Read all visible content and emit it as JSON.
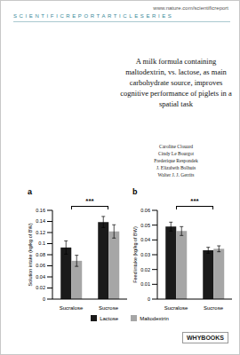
{
  "document": {
    "url": "www.nature.com/scientificreport",
    "series": "SCIENTIFICREPORTARTICLESERIES",
    "title": "A milk formula containing maltodextrin, vs. lactose, as main carbohydrate source, improves cognitive performance of piglets in a spatial task",
    "authors": [
      "Caroline Clouard",
      "Cindy Le Bourgot",
      "Frederique Respondek",
      "J. Elizabeth Bolhuis",
      "Walter J. J. Gerrits"
    ],
    "publisher": "WHYBOOKS"
  },
  "chart_data": [
    {
      "panel": "a",
      "type": "bar",
      "y_label": "Solution intake (kg/kg of BW)",
      "categories": [
        "Sucralose",
        "Sucrose"
      ],
      "series": [
        {
          "name": "Lactose",
          "color": "#1a1a1a",
          "values": [
            0.093,
            0.139
          ],
          "errors": [
            0.012,
            0.01
          ]
        },
        {
          "name": "Maltodextrin",
          "color": "#a6a6a6",
          "values": [
            0.069,
            0.122
          ],
          "errors": [
            0.01,
            0.012
          ]
        }
      ],
      "ylim": [
        0,
        0.16
      ],
      "yticks": [
        0,
        0.02,
        0.04,
        0.06,
        0.08,
        0.1,
        0.12,
        0.14,
        0.16
      ],
      "annotation": "***",
      "legend": "bottom"
    },
    {
      "panel": "b",
      "type": "bar",
      "y_label": "Feed intake (kg/kg of BW)",
      "categories": [
        "Sucralose",
        "Sucrose"
      ],
      "series": [
        {
          "name": "Lactose",
          "color": "#1a1a1a",
          "values": [
            0.049,
            0.033
          ],
          "errors": [
            0.003,
            0.002
          ]
        },
        {
          "name": "Maltodextrin",
          "color": "#a6a6a6",
          "values": [
            0.046,
            0.034
          ],
          "errors": [
            0.003,
            0.002
          ]
        }
      ],
      "ylim": [
        0,
        0.06
      ],
      "yticks": [
        0,
        0.01,
        0.02,
        0.03,
        0.04,
        0.05,
        0.06
      ],
      "annotation": "***"
    }
  ]
}
